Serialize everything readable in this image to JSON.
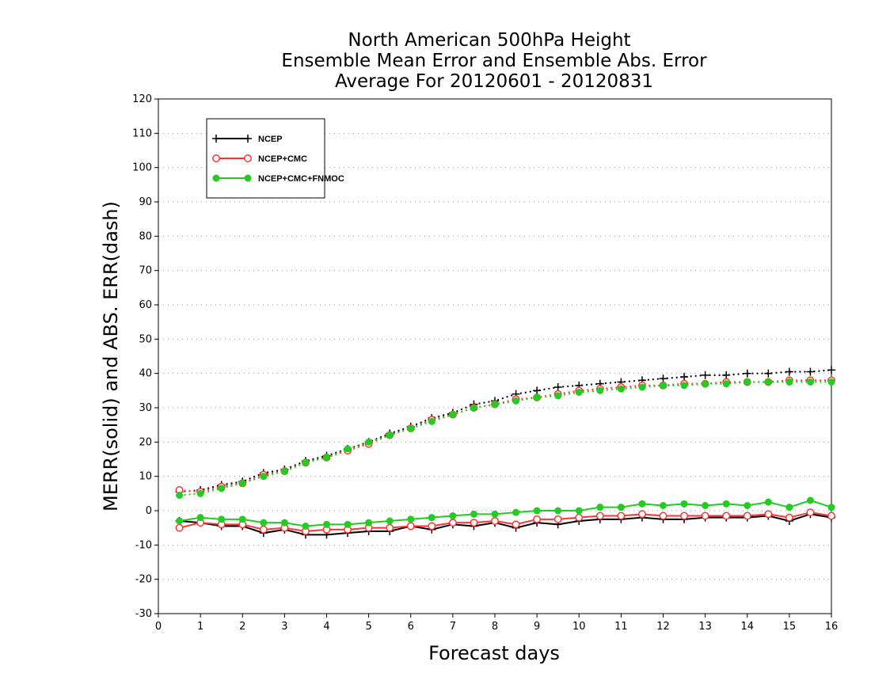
{
  "chart_data": {
    "type": "line",
    "title": [
      "North American 500hPa Height",
      "Ensemble Mean Error and Ensemble Abs. Error",
      "Average For 20120601 - 20120831"
    ],
    "xlabel": "Forecast days",
    "ylabel": "MERR(solid) and ABS. ERR(dash)",
    "xlim": [
      0,
      16
    ],
    "ylim": [
      -30,
      120
    ],
    "xticks": [
      "0",
      "1",
      "2",
      "3",
      "4",
      "5",
      "6",
      "7",
      "8",
      "9",
      "10",
      "11",
      "12",
      "13",
      "14",
      "15",
      "16"
    ],
    "yticks": [
      "-30",
      "-20",
      "-10",
      "0",
      "10",
      "20",
      "30",
      "40",
      "50",
      "60",
      "70",
      "80",
      "90",
      "100",
      "110",
      "120"
    ],
    "grid": true,
    "legend_position": "top-left",
    "x": [
      0.5,
      1,
      1.5,
      2,
      2.5,
      3,
      3.5,
      4,
      4.5,
      5,
      5.5,
      6,
      6.5,
      7,
      7.5,
      8,
      8.5,
      9,
      9.5,
      10,
      10.5,
      11,
      11.5,
      12,
      12.5,
      13,
      13.5,
      14,
      14.5,
      15,
      15.5,
      16
    ],
    "series": [
      {
        "name": "NCEP",
        "color": "#000000",
        "marker": "plus",
        "merr": [
          -3,
          -3.5,
          -4.5,
          -4.5,
          -6.5,
          -5.5,
          -7,
          -7,
          -6.5,
          -6,
          -6,
          -4.5,
          -5.5,
          -4,
          -4.5,
          -3.5,
          -5,
          -3.5,
          -4,
          -3,
          -2.5,
          -2.5,
          -2,
          -2.5,
          -2.5,
          -2,
          -2,
          -2,
          -1.5,
          -3,
          -1,
          -2
        ],
        "abserr": [
          5.5,
          6,
          7.5,
          8.5,
          11,
          12,
          14.5,
          16,
          18,
          20,
          22.5,
          24.5,
          27,
          28.5,
          31,
          32,
          34,
          35,
          36,
          36.5,
          37,
          37.5,
          38,
          38.5,
          39,
          39.5,
          39.5,
          40,
          40,
          40.5,
          40.5,
          41
        ]
      },
      {
        "name": "NCEP+CMC",
        "color": "#ff3333",
        "marker": "open-circle",
        "merr": [
          -5,
          -3.5,
          -4,
          -4,
          -5.5,
          -5,
          -6,
          -5.5,
          -5.5,
          -5,
          -5,
          -4.5,
          -4.5,
          -3.5,
          -3.5,
          -3,
          -4,
          -2.5,
          -2.5,
          -2,
          -1.5,
          -1.5,
          -1,
          -1.5,
          -1.5,
          -1.5,
          -1.5,
          -1.5,
          -1,
          -2,
          -0.5,
          -1.5
        ],
        "abserr": [
          6,
          5.5,
          7,
          8,
          10.5,
          11.5,
          14,
          15.5,
          17.5,
          19.5,
          22,
          24,
          26.5,
          28,
          30,
          31,
          32.5,
          33,
          34,
          35,
          35.5,
          36,
          36.5,
          36.5,
          37,
          37,
          37.5,
          37.5,
          37.5,
          38,
          38,
          38
        ]
      },
      {
        "name": "NCEP+CMC+FNMOC",
        "color": "#22cc22",
        "marker": "filled-circle",
        "merr": [
          -3,
          -2,
          -2.5,
          -2.5,
          -3.5,
          -3.5,
          -4.5,
          -4,
          -4,
          -3.5,
          -3,
          -2.5,
          -2,
          -1.5,
          -1,
          -1,
          -0.5,
          0,
          0,
          0,
          1,
          1,
          2,
          1.5,
          2,
          1.5,
          2,
          1.5,
          2.5,
          1,
          3,
          1
        ],
        "abserr": [
          4.5,
          5,
          6.5,
          8,
          10,
          11.5,
          14,
          15.5,
          18,
          20,
          22,
          24,
          26,
          28,
          30,
          31,
          32,
          33,
          33.5,
          34.5,
          35,
          35.5,
          36,
          36.5,
          36.5,
          37,
          37,
          37.5,
          37.5,
          37.5,
          37.5,
          37.5
        ]
      }
    ]
  }
}
